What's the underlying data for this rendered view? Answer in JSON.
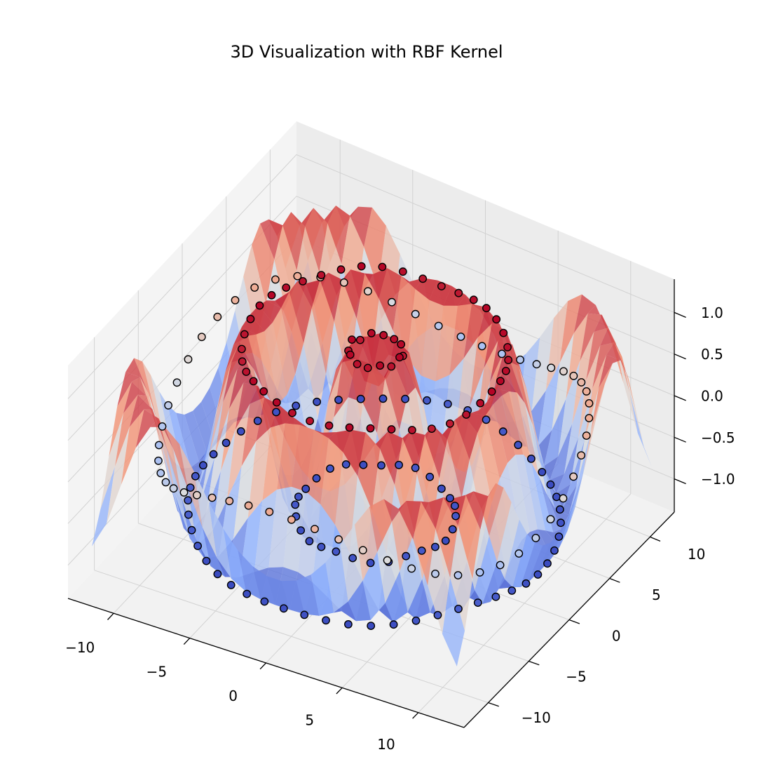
{
  "chart_data": {
    "type": "surface3d",
    "title": "3D Visualization with RBF Kernel",
    "x_ticks": [
      -10,
      -5,
      0,
      5,
      10
    ],
    "y_ticks": [
      -10,
      -5,
      0,
      5,
      10
    ],
    "z_ticks": [
      -1.0,
      -0.5,
      0.0,
      0.5,
      1.0
    ],
    "x_tick_labels": [
      "−10",
      "−5",
      "0",
      "5",
      "10"
    ],
    "y_tick_labels": [
      "−10",
      "−5",
      "0",
      "5",
      "10"
    ],
    "z_tick_labels": [
      "−1.0",
      "−0.5",
      "0.0",
      "0.5",
      "1.0"
    ],
    "xlim": [
      -13,
      13
    ],
    "ylim": [
      -13,
      13
    ],
    "zlim": [
      -1.4,
      1.4
    ],
    "grid": true,
    "colormap": "coolwarm",
    "colormap_colors": [
      "#3b4cc0",
      "#dddddd",
      "#b40426"
    ],
    "surface_function": "z = sin(r) * exp(-0.0005 r^2) with r = sqrt(x^2 + y^2), sampled on a 26 x 26 grid over [-12, 12]",
    "series": [
      {
        "type": "scatter",
        "description": "data points on the z = sin(r) surface along five rings",
        "ring_radii": [
          1.6,
          4.7,
          7.8,
          10.9,
          12.6
        ],
        "points_per_ring": [
          14,
          28,
          40,
          52,
          56
        ],
        "edgecolor": "#000000"
      }
    ]
  }
}
